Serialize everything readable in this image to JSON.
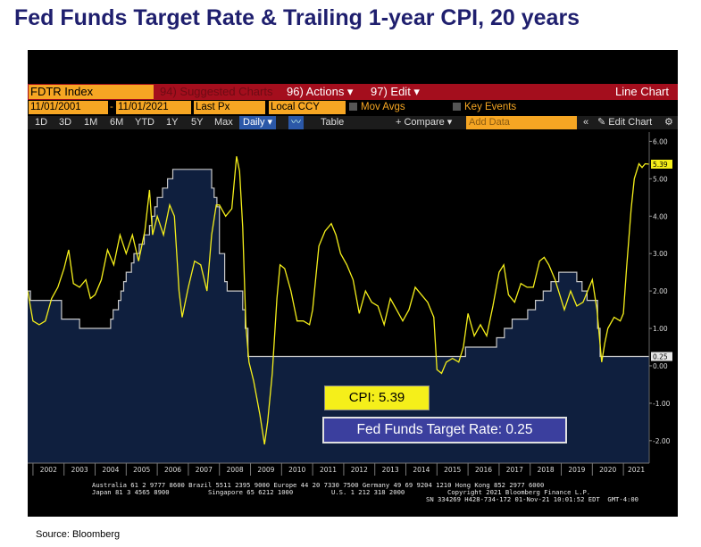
{
  "title": "Fed Funds Target Rate & Trailing 1-year CPI, 20 years",
  "source": "Source: Bloomberg",
  "toolbar1": {
    "ticker": "FDTR Index",
    "suggested": "94) Suggested Charts",
    "actions": "96) Actions ▾",
    "edit": "97) Edit ▾",
    "chart_type": "Line Chart"
  },
  "toolbar2": {
    "start_date": "11/01/2001",
    "dash": "-",
    "end_date": "11/01/2021",
    "field": "Last Px",
    "currency": "Local CCY",
    "mov_avgs": "Mov Avgs",
    "key_events": "Key Events"
  },
  "toolbar3": {
    "periods": [
      "1D",
      "3D",
      "1M",
      "6M",
      "YTD",
      "1Y",
      "5Y",
      "Max"
    ],
    "frequency": "Daily ▾",
    "table": "Table",
    "compare": "+ Compare ▾",
    "add_data": "Add Data",
    "edit_chart": "✎ Edit Chart",
    "collapse": "«",
    "gear": "⚙"
  },
  "labels": {
    "cpi": "CPI: 5.39",
    "fed_funds": "Fed Funds Target Rate: 0.25"
  },
  "footer": {
    "line1": "Australia 61 2 9777 8600 Brazil 5511 2395 9000 Europe 44 20 7330 7500 Germany 49 69 9204 1210 Hong Kong 852 2977 6000",
    "line2a": "Japan 81 3 4565 8900",
    "line2b": "Singapore 65 6212 1000",
    "line2c": "U.S. 1 212 318 2000",
    "line2d": "Copyright 2021 Bloomberg Finance L.P.",
    "line3": "SN 334269 H428-734-172 01-Nov-21 10:01:52 EDT  GMT-4:00"
  },
  "colors": {
    "background": "#000000",
    "area_fill": "#0f1f3e",
    "fed_funds_line": "#c9c9c9",
    "cpi_line": "#f5ef1a",
    "toolbar_red": "#a40e1d",
    "accent_orange": "#f6a623"
  },
  "chart_data": {
    "type": "line",
    "title": "",
    "xlabel": "",
    "ylabel": "",
    "ylim": [
      -2.6,
      6.2
    ],
    "xlim": [
      2001.83,
      2021.83
    ],
    "x_tick_labels": [
      "2002",
      "2003",
      "2004",
      "2005",
      "2006",
      "2007",
      "2008",
      "2009",
      "2010",
      "2011",
      "2012",
      "2013",
      "2014",
      "2015",
      "2016",
      "2017",
      "2018",
      "2019",
      "2020",
      "2021"
    ],
    "y_ticks": [
      6.0,
      5.0,
      4.0,
      3.0,
      2.0,
      1.0,
      0.0,
      -1.0,
      -2.0
    ],
    "y_tick_labels": [
      "6.00",
      "5.00",
      "4.00",
      "3.00",
      "2.00",
      "1.00",
      "0.00",
      "-1.00",
      "-2.00"
    ],
    "last_value_labels": {
      "cpi": "5.39",
      "fed_funds": "0.25"
    },
    "series": [
      {
        "name": "FDTR Index",
        "style": "area",
        "x": [
          2001.83,
          2001.92,
          2002.83,
          2002.92,
          2003.42,
          2003.5,
          2004.42,
          2004.5,
          2004.58,
          2004.67,
          2004.75,
          2004.83,
          2004.92,
          2005.0,
          2005.08,
          2005.17,
          2005.25,
          2005.33,
          2005.42,
          2005.5,
          2005.58,
          2005.67,
          2005.75,
          2005.83,
          2005.92,
          2006.0,
          2006.08,
          2006.17,
          2006.25,
          2006.33,
          2006.42,
          2006.5,
          2007.67,
          2007.75,
          2007.83,
          2007.92,
          2008.0,
          2008.08,
          2008.17,
          2008.25,
          2008.75,
          2008.83,
          2008.92,
          2015.92,
          2016.92,
          2017.17,
          2017.42,
          2017.92,
          2018.17,
          2018.42,
          2018.67,
          2018.92,
          2019.5,
          2019.67,
          2019.83,
          2020.17,
          2020.25,
          2021.83
        ],
        "values": [
          2.0,
          1.75,
          1.75,
          1.25,
          1.25,
          1.0,
          1.0,
          1.25,
          1.5,
          1.5,
          1.75,
          2.0,
          2.25,
          2.5,
          2.5,
          2.75,
          3.0,
          3.0,
          3.25,
          3.25,
          3.5,
          3.5,
          3.75,
          4.0,
          4.25,
          4.5,
          4.5,
          4.75,
          4.75,
          5.0,
          5.0,
          5.25,
          5.25,
          4.75,
          4.5,
          4.25,
          3.0,
          3.0,
          2.25,
          2.0,
          1.5,
          1.0,
          0.25,
          0.5,
          0.75,
          1.0,
          1.25,
          1.5,
          1.75,
          2.0,
          2.25,
          2.5,
          2.25,
          2.0,
          1.75,
          1.0,
          0.25,
          0.25
        ]
      },
      {
        "name": "CPI",
        "style": "line",
        "x": [
          2001.83,
          2002.0,
          2002.2,
          2002.4,
          2002.6,
          2002.8,
          2003.0,
          2003.15,
          2003.3,
          2003.5,
          2003.7,
          2003.85,
          2004.0,
          2004.2,
          2004.4,
          2004.6,
          2004.8,
          2005.0,
          2005.2,
          2005.4,
          2005.6,
          2005.75,
          2005.85,
          2006.0,
          2006.2,
          2006.4,
          2006.55,
          2006.7,
          2006.8,
          2007.0,
          2007.2,
          2007.4,
          2007.6,
          2007.75,
          2007.9,
          2008.0,
          2008.2,
          2008.4,
          2008.55,
          2008.65,
          2008.75,
          2008.85,
          2008.95,
          2009.1,
          2009.3,
          2009.45,
          2009.55,
          2009.7,
          2009.85,
          2009.95,
          2010.1,
          2010.3,
          2010.5,
          2010.7,
          2010.9,
          2011.0,
          2011.2,
          2011.4,
          2011.6,
          2011.75,
          2011.9,
          2012.1,
          2012.3,
          2012.5,
          2012.7,
          2012.9,
          2013.1,
          2013.3,
          2013.5,
          2013.7,
          2013.9,
          2014.1,
          2014.3,
          2014.5,
          2014.7,
          2014.9,
          2015.0,
          2015.15,
          2015.3,
          2015.5,
          2015.7,
          2015.85,
          2016.0,
          2016.2,
          2016.4,
          2016.6,
          2016.8,
          2017.0,
          2017.15,
          2017.3,
          2017.5,
          2017.7,
          2017.9,
          2018.1,
          2018.3,
          2018.45,
          2018.6,
          2018.8,
          2018.95,
          2019.1,
          2019.3,
          2019.5,
          2019.7,
          2019.9,
          2020.0,
          2020.15,
          2020.3,
          2020.4,
          2020.5,
          2020.7,
          2020.9,
          2021.0,
          2021.1,
          2021.25,
          2021.35,
          2021.5,
          2021.6,
          2021.7,
          2021.83
        ],
        "values": [
          2.0,
          1.2,
          1.1,
          1.2,
          1.8,
          2.1,
          2.6,
          3.1,
          2.2,
          2.1,
          2.3,
          1.8,
          1.9,
          2.3,
          3.1,
          2.7,
          3.5,
          3.0,
          3.5,
          2.8,
          3.6,
          4.7,
          3.5,
          4.0,
          3.5,
          4.3,
          4.0,
          2.0,
          1.3,
          2.1,
          2.8,
          2.7,
          2.0,
          3.5,
          4.3,
          4.3,
          4.0,
          4.2,
          5.6,
          5.2,
          3.7,
          1.1,
          0.1,
          -0.4,
          -1.3,
          -2.1,
          -1.5,
          -0.2,
          1.8,
          2.7,
          2.6,
          2.0,
          1.2,
          1.2,
          1.1,
          1.5,
          3.2,
          3.6,
          3.8,
          3.5,
          3.0,
          2.7,
          2.3,
          1.4,
          2.0,
          1.7,
          1.6,
          1.1,
          1.8,
          1.5,
          1.2,
          1.5,
          2.1,
          1.9,
          1.7,
          1.3,
          -0.1,
          -0.2,
          0.1,
          0.2,
          0.1,
          0.5,
          1.4,
          0.8,
          1.1,
          0.8,
          1.6,
          2.5,
          2.7,
          1.9,
          1.7,
          2.2,
          2.1,
          2.1,
          2.8,
          2.9,
          2.7,
          2.3,
          1.9,
          1.5,
          2.0,
          1.6,
          1.7,
          2.1,
          2.3,
          1.5,
          0.1,
          0.6,
          1.0,
          1.3,
          1.2,
          1.4,
          2.6,
          4.2,
          5.0,
          5.4,
          5.3,
          5.4,
          5.39
        ]
      }
    ]
  }
}
